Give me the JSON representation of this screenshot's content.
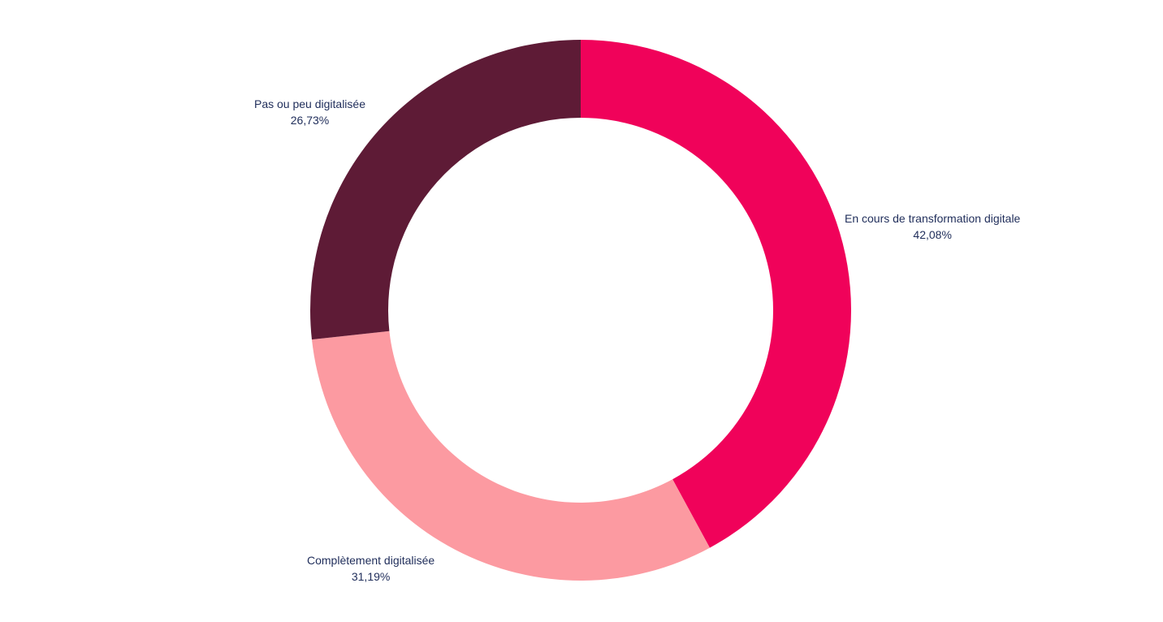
{
  "chart_data": {
    "type": "pie",
    "donut": true,
    "start": "top",
    "direction": "clockwise",
    "slices": [
      {
        "label": "En cours de transformation digitale",
        "value": 42.08,
        "value_label": "42,08%",
        "color": "#f0025a"
      },
      {
        "label": "Complètement digitalisée",
        "value": 31.19,
        "value_label": "31,19%",
        "color": "#fc9aa1"
      },
      {
        "label": "Pas ou peu digitalisée",
        "value": 26.73,
        "value_label": "26,73%",
        "color": "#5e1b36"
      }
    ]
  }
}
